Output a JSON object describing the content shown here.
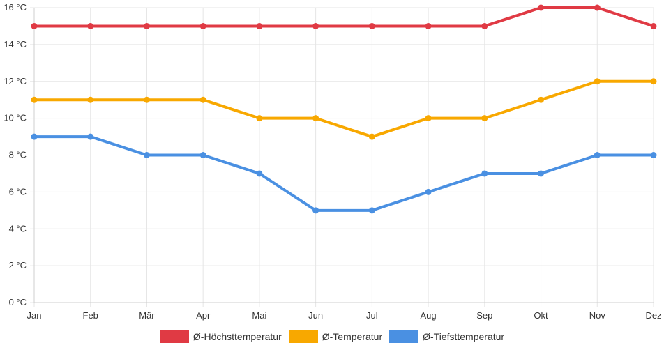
{
  "chart_data": {
    "type": "line",
    "categories": [
      "Jan",
      "Feb",
      "Mär",
      "Apr",
      "Mai",
      "Jun",
      "Jul",
      "Aug",
      "Sep",
      "Okt",
      "Nov",
      "Dez"
    ],
    "series": [
      {
        "name": "Ø-Höchsttemperatur",
        "color": "#e03a44",
        "values": [
          15,
          15,
          15,
          15,
          15,
          15,
          15,
          15,
          15,
          16,
          16,
          15
        ]
      },
      {
        "name": "Ø-Temperatur",
        "color": "#f8a800",
        "values": [
          11,
          11,
          11,
          11,
          10,
          10,
          9,
          10,
          10,
          11,
          12,
          12
        ]
      },
      {
        "name": "Ø-Tiefsttemperatur",
        "color": "#4a90e2",
        "values": [
          9,
          9,
          8,
          8,
          7,
          5,
          5,
          6,
          7,
          7,
          8,
          8
        ]
      }
    ],
    "yticks": [
      "0 °C",
      "2 °C",
      "4 °C",
      "6 °C",
      "8 °C",
      "10 °C",
      "12 °C",
      "14 °C",
      "16 °C"
    ],
    "ylim": [
      0,
      16
    ],
    "grid": true,
    "legend_position": "bottom"
  }
}
